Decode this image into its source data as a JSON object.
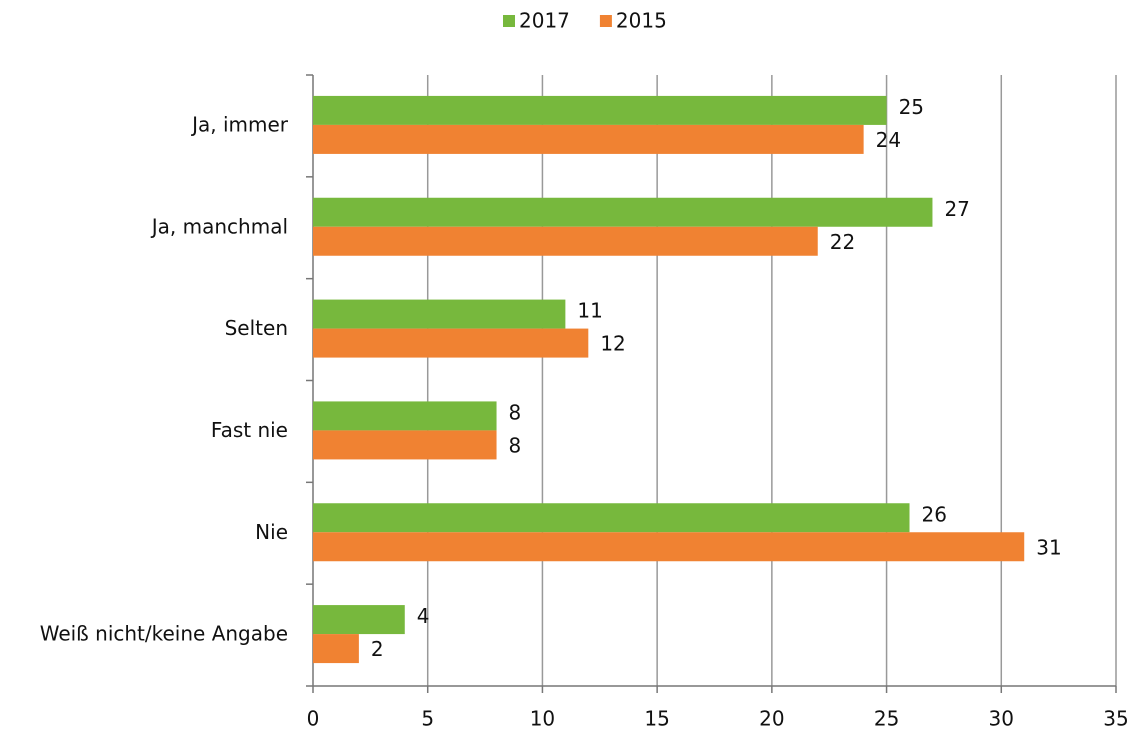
{
  "chart_data": {
    "type": "bar",
    "orientation": "horizontal",
    "categories": [
      "Ja, immer",
      "Ja, manchmal",
      "Selten",
      "Fast nie",
      "Nie",
      "Weiß nicht/keine Angabe"
    ],
    "series": [
      {
        "name": "2017",
        "color": "#77b83d",
        "values": [
          25,
          27,
          11,
          8,
          26,
          4
        ]
      },
      {
        "name": "2015",
        "color": "#f08232",
        "values": [
          24,
          22,
          12,
          8,
          31,
          2
        ]
      }
    ],
    "xlim": [
      0,
      35
    ],
    "xticks": [
      0,
      5,
      10,
      15,
      20,
      25,
      30,
      35
    ],
    "grid": true,
    "legend": "top"
  }
}
